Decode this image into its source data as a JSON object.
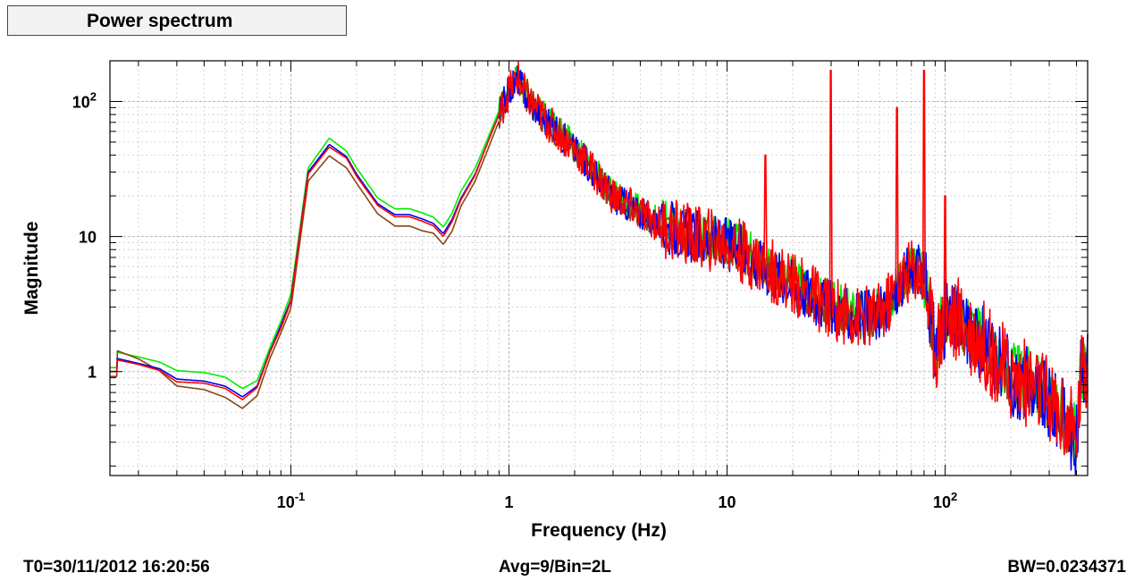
{
  "title": "Power spectrum",
  "footer": {
    "t0": "T0=30/11/2012 16:20:56",
    "avg": "Avg=9/Bin=2L",
    "bw": "BW=0.0234371"
  },
  "chart_data": {
    "type": "line",
    "title": "Power spectrum",
    "xlabel": "Frequency (Hz)",
    "ylabel": "Magnitude",
    "x_scale": "log",
    "y_scale": "log",
    "xlim": [
      0.0148,
      450
    ],
    "ylim": [
      0.17,
      200
    ],
    "grid": true,
    "x_ticks": [
      {
        "value": 0.1,
        "base": "10",
        "exp": "-1"
      },
      {
        "value": 1,
        "base": "1",
        "exp": ""
      },
      {
        "value": 10,
        "base": "10",
        "exp": ""
      },
      {
        "value": 100,
        "base": "10",
        "exp": "2"
      }
    ],
    "y_ticks": [
      {
        "value": 1,
        "base": "1",
        "exp": ""
      },
      {
        "value": 10,
        "base": "10",
        "exp": ""
      },
      {
        "value": 100,
        "base": "10",
        "exp": "2"
      }
    ],
    "series": [
      {
        "color": "#00ee00",
        "offset": 1.07,
        "jitter": 0.1,
        "x": [
          0.016,
          0.02,
          0.025,
          0.03,
          0.04,
          0.05,
          0.06,
          0.07,
          0.08,
          0.09,
          0.1,
          0.12,
          0.15,
          0.18,
          0.2,
          0.25,
          0.3,
          0.35,
          0.4,
          0.45,
          0.5,
          0.55,
          0.6,
          0.7,
          0.8,
          0.9,
          1.0,
          1.1,
          1.2,
          1.5,
          2.0,
          3.0,
          5.0,
          7.0,
          10,
          15,
          20,
          30,
          40,
          50,
          60,
          70,
          80,
          90,
          100,
          120,
          150,
          200,
          250,
          300,
          350,
          400,
          420
        ],
        "y": [
          1.3,
          1.2,
          1.1,
          0.95,
          0.92,
          0.85,
          0.7,
          0.8,
          1.4,
          2.2,
          3.5,
          30,
          50,
          40,
          30,
          18,
          15,
          15,
          14,
          13,
          11,
          14,
          20,
          30,
          50,
          80,
          120,
          150,
          110,
          70,
          45,
          20,
          12,
          10,
          9,
          6,
          4.5,
          3,
          2.5,
          2.6,
          4,
          6,
          5,
          1.5,
          2.5,
          2.3,
          1.6,
          0.9,
          0.8,
          0.6,
          0.45,
          0.3,
          1.0
        ]
      },
      {
        "color": "#8b4513",
        "offset": 0.92,
        "jitter": 0.08,
        "x": [
          0.016,
          0.02,
          0.025,
          0.03,
          0.04,
          0.05,
          0.06,
          0.07,
          0.08,
          0.09,
          0.1,
          0.12,
          0.15,
          0.18,
          0.2,
          0.25,
          0.3,
          0.35,
          0.4,
          0.45,
          0.5,
          0.55,
          0.6,
          0.7,
          0.8,
          0.9,
          1.0,
          1.1,
          1.2,
          1.5,
          2.0,
          3.0,
          5.0,
          7.0,
          10,
          15,
          20,
          30,
          40,
          50,
          60,
          70,
          80,
          90,
          100,
          120,
          150,
          200,
          250,
          300,
          350,
          400,
          420
        ],
        "y": [
          1.55,
          1.35,
          1.1,
          0.85,
          0.8,
          0.7,
          0.58,
          0.72,
          1.35,
          2.1,
          3.2,
          28,
          43,
          35,
          27,
          16,
          13,
          13,
          12,
          11.5,
          9.5,
          12,
          18,
          28,
          48,
          78,
          120,
          150,
          110,
          70,
          45,
          20,
          12,
          10,
          9,
          6,
          4.5,
          3,
          2.5,
          2.6,
          4,
          6,
          5,
          1.5,
          2.5,
          2.3,
          1.6,
          0.9,
          0.8,
          0.6,
          0.45,
          0.3,
          1.0
        ]
      },
      {
        "color": "#0000ee",
        "offset": 1.0,
        "jitter": 0.12,
        "x": [
          0.016,
          0.02,
          0.025,
          0.03,
          0.04,
          0.05,
          0.06,
          0.07,
          0.08,
          0.09,
          0.1,
          0.12,
          0.15,
          0.18,
          0.2,
          0.25,
          0.3,
          0.35,
          0.4,
          0.45,
          0.5,
          0.55,
          0.6,
          0.7,
          0.8,
          0.9,
          1.0,
          1.1,
          1.2,
          1.5,
          2.0,
          3.0,
          5.0,
          7.0,
          10,
          15,
          20,
          30,
          40,
          50,
          60,
          70,
          80,
          90,
          100,
          120,
          150,
          200,
          250,
          300,
          350,
          400,
          420
        ],
        "y": [
          1.25,
          1.15,
          1.05,
          0.88,
          0.85,
          0.78,
          0.65,
          0.78,
          1.4,
          2.2,
          3.4,
          30,
          48,
          39,
          29,
          17.5,
          14.5,
          14.5,
          13.5,
          12.5,
          10.5,
          13.5,
          19,
          29,
          50,
          80,
          120,
          150,
          110,
          70,
          45,
          20,
          12,
          10,
          9,
          6,
          4.5,
          3,
          2.5,
          2.6,
          4,
          6,
          5,
          1.5,
          2.5,
          2.3,
          1.6,
          0.9,
          0.8,
          0.6,
          0.45,
          0.3,
          1.0
        ]
      },
      {
        "color": "#ff0000",
        "offset": 1.0,
        "jitter": 0.14,
        "x": [
          0.016,
          0.02,
          0.025,
          0.03,
          0.04,
          0.05,
          0.06,
          0.07,
          0.08,
          0.09,
          0.1,
          0.12,
          0.15,
          0.18,
          0.2,
          0.25,
          0.3,
          0.35,
          0.4,
          0.45,
          0.5,
          0.55,
          0.6,
          0.7,
          0.8,
          0.9,
          1.0,
          1.1,
          1.2,
          1.5,
          2.0,
          3.0,
          5.0,
          7.0,
          10,
          15,
          20,
          30,
          40,
          50,
          60,
          70,
          80,
          90,
          100,
          120,
          150,
          200,
          250,
          300,
          350,
          400,
          420
        ],
        "y": [
          1.22,
          1.13,
          1.02,
          0.84,
          0.82,
          0.75,
          0.62,
          0.76,
          1.38,
          2.1,
          3.3,
          29,
          46,
          38,
          28,
          17,
          14,
          14,
          13,
          12,
          10,
          13,
          18.5,
          28.5,
          50,
          80,
          120,
          150,
          110,
          70,
          45,
          20,
          12,
          10,
          9,
          6,
          4.5,
          3,
          2.5,
          2.6,
          4,
          6,
          5,
          1.5,
          2.5,
          2.3,
          1.6,
          0.9,
          0.8,
          0.6,
          0.45,
          0.3,
          1.0
        ]
      }
    ],
    "peaks": [
      {
        "x": 15,
        "y": 40
      },
      {
        "x": 30,
        "y": 170
      },
      {
        "x": 60,
        "y": 90
      },
      {
        "x": 80,
        "y": 170
      },
      {
        "x": 100,
        "y": 20
      }
    ]
  }
}
